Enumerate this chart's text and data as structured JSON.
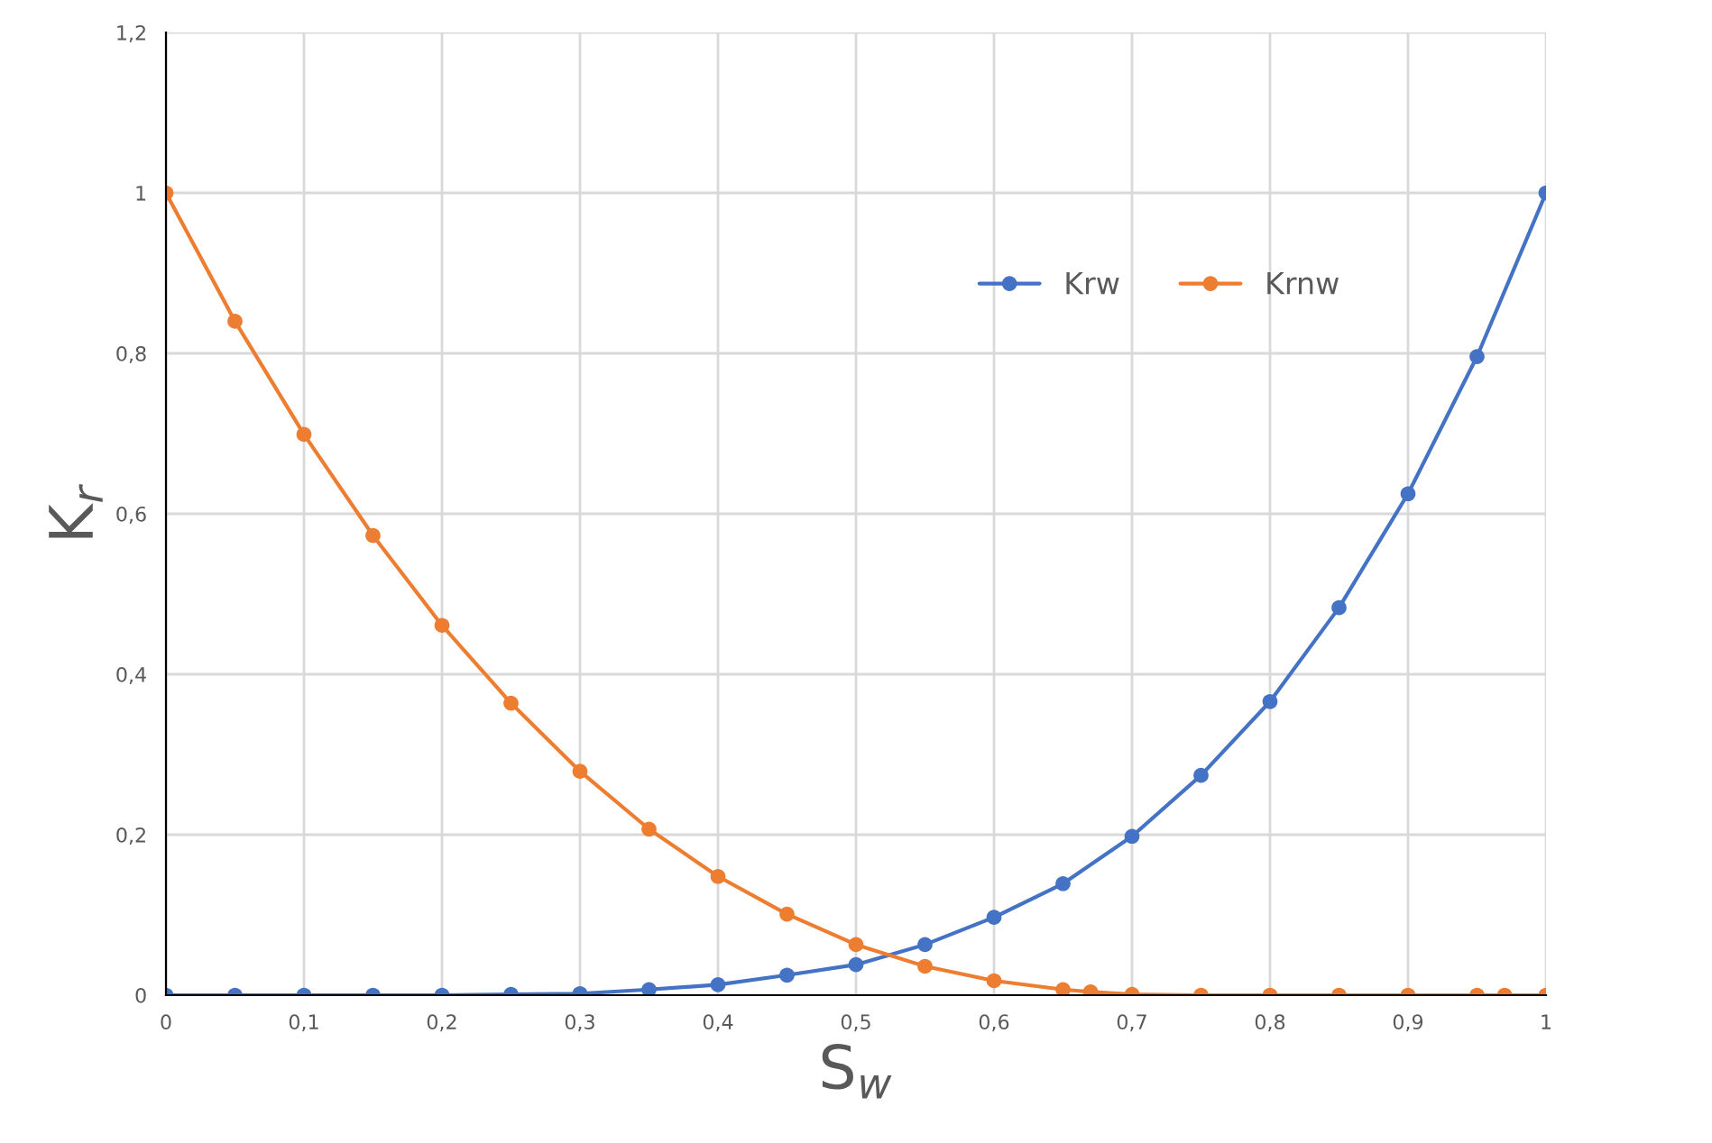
{
  "chart_data": {
    "type": "line",
    "xlabel": "S$_{w}$",
    "ylabel": "K$_{r}$",
    "xlim": [
      0,
      1
    ],
    "ylim": [
      0,
      1.2
    ],
    "xticks": [
      0,
      {
        "value": 0.1,
        "label": "0,1"
      },
      {
        "value": 0.2,
        "label": "0,2"
      },
      {
        "value": 0.3,
        "label": "0,3"
      },
      {
        "value": 0.4,
        "label": "0,4"
      },
      {
        "value": 0.5,
        "label": "0,5"
      },
      {
        "value": 0.6,
        "label": "0,6"
      },
      {
        "value": 0.7,
        "label": "0,7"
      },
      {
        "value": 0.8,
        "label": "0,8"
      },
      {
        "value": 0.9,
        "label": "0,9"
      },
      1
    ],
    "yticks": [
      0,
      {
        "value": 0.2,
        "label": "0,2"
      },
      {
        "value": 0.4,
        "label": "0,4"
      },
      {
        "value": 0.6,
        "label": "0,6"
      },
      {
        "value": 0.8,
        "label": "0,8"
      },
      1,
      {
        "value": 1.2,
        "label": "1,2"
      }
    ],
    "grid": true,
    "legend": "top",
    "marker": "circle",
    "line_style": "solid",
    "series": [
      {
        "name": "Krw",
        "color": "#4472c4",
        "x": [
          0,
          0.05,
          0.1,
          0.15,
          0.2,
          0.25,
          0.3,
          0.35,
          0.4,
          0.45,
          0.5,
          0.55,
          0.6,
          0.65,
          0.7,
          0.75,
          0.8,
          0.85,
          0.9,
          0.95,
          1
        ],
        "values": [
          0,
          0,
          0,
          0,
          0,
          0.001,
          0.002,
          0.007,
          0.013,
          0.025,
          0.038,
          0.063,
          0.097,
          0.139,
          0.198,
          0.274,
          0.366,
          0.483,
          0.625,
          0.796,
          1
        ]
      },
      {
        "name": "Krnw",
        "color": "#ed7d31",
        "x": [
          0,
          0.05,
          0.1,
          0.15,
          0.2,
          0.25,
          0.3,
          0.35,
          0.4,
          0.45,
          0.5,
          0.55,
          0.6,
          0.65,
          0.67,
          0.7,
          0.75,
          0.8,
          0.85,
          0.9,
          0.95,
          0.97,
          1
        ],
        "values": [
          1,
          0.84,
          0.699,
          0.573,
          0.461,
          0.364,
          0.279,
          0.207,
          0.148,
          0.101,
          0.063,
          0.036,
          0.018,
          0.007,
          0.004,
          0.001,
          0,
          0,
          0,
          0,
          0,
          0,
          0
        ]
      }
    ]
  }
}
